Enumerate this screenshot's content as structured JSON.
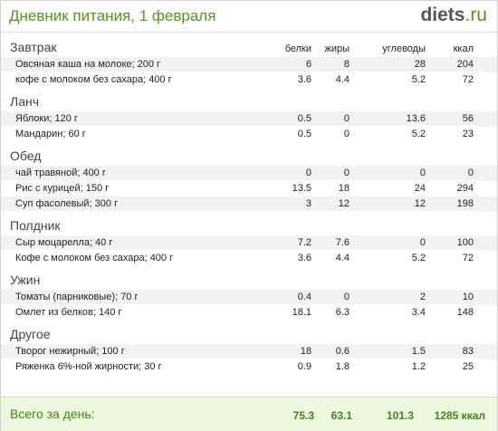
{
  "header": {
    "title": "Дневник питания, 1 февраля",
    "logo_main": "diets",
    "logo_tld": ".ru"
  },
  "columns": [
    "белки",
    "жиры",
    "углеводы",
    "ккал"
  ],
  "meals": [
    {
      "name": "Завтрак",
      "items": [
        {
          "name": "Овсяная каша на молоке; 200 г",
          "b": "6",
          "f": "8",
          "c": "28",
          "k": "204"
        },
        {
          "name": "кофе с молоком без сахара; 400 г",
          "b": "3.6",
          "f": "4.4",
          "c": "5.2",
          "k": "72"
        }
      ]
    },
    {
      "name": "Ланч",
      "items": [
        {
          "name": "Яблоки; 120 г",
          "b": "0.5",
          "f": "0",
          "c": "13.6",
          "k": "56"
        },
        {
          "name": "Мандарин; 60 г",
          "b": "0.5",
          "f": "0",
          "c": "5.2",
          "k": "23"
        }
      ]
    },
    {
      "name": "Обед",
      "items": [
        {
          "name": "чай травяной; 400 г",
          "b": "0",
          "f": "0",
          "c": "0",
          "k": "0"
        },
        {
          "name": "Рис с курицей; 150 г",
          "b": "13.5",
          "f": "18",
          "c": "24",
          "k": "294"
        },
        {
          "name": "Суп фасолевый; 300 г",
          "b": "3",
          "f": "12",
          "c": "12",
          "k": "198"
        }
      ]
    },
    {
      "name": "Полдник",
      "items": [
        {
          "name": "Сыр моцарелла; 40 г",
          "b": "7.2",
          "f": "7.6",
          "c": "0",
          "k": "100"
        },
        {
          "name": "Кофе с молоком без сахара; 400 г",
          "b": "3.6",
          "f": "4.4",
          "c": "5.2",
          "k": "72"
        }
      ]
    },
    {
      "name": "Ужин",
      "items": [
        {
          "name": "Томаты (парниковые); 70 г",
          "b": "0.4",
          "f": "0",
          "c": "2",
          "k": "10"
        },
        {
          "name": "Омлет из белков; 140 г",
          "b": "18.1",
          "f": "6.3",
          "c": "3.4",
          "k": "148"
        }
      ]
    },
    {
      "name": "Другое",
      "items": [
        {
          "name": "Творог нежирный; 100 г",
          "b": "18",
          "f": "0.6",
          "c": "1.5",
          "k": "83"
        },
        {
          "name": "Ряженка 6%-ной жирности; 30 г",
          "b": "0.9",
          "f": "1.8",
          "c": "1.2",
          "k": "25"
        }
      ]
    }
  ],
  "total": {
    "label": "Всего за день:",
    "b": "75.3",
    "f": "63.1",
    "c": "101.3",
    "k": "1285 ккал"
  },
  "colors": {
    "accent": "#4d9a18",
    "footer_bg": "#eef7df",
    "stripe": "#f2f2f2"
  }
}
